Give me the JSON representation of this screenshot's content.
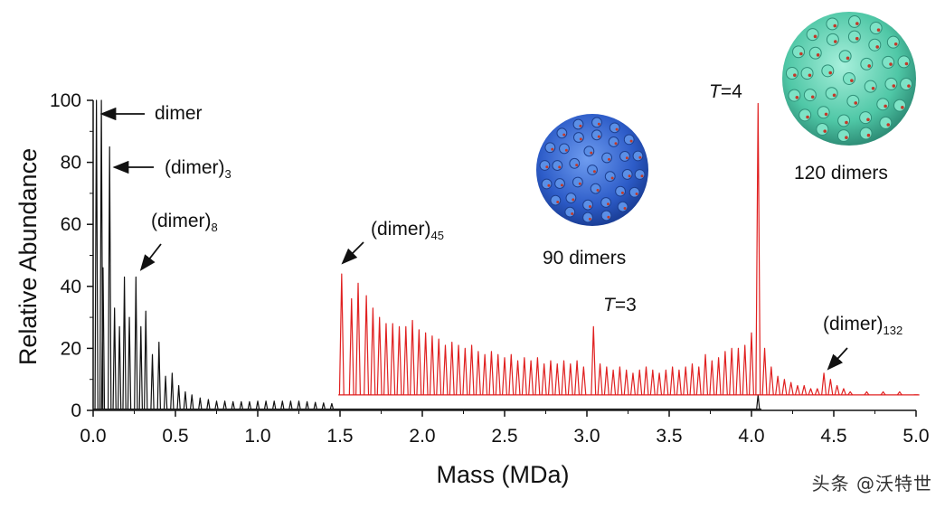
{
  "chart_data": {
    "type": "line",
    "xlabel": "Mass (MDa)",
    "ylabel": "Relative Abundance",
    "xlim": [
      0.0,
      5.0
    ],
    "ylim": [
      0,
      100
    ],
    "xticks": [
      "0.0",
      "0.5",
      "1.0",
      "1.5",
      "2.0",
      "2.5",
      "3.0",
      "3.5",
      "4.0",
      "4.5",
      "5.0"
    ],
    "yticks": [
      "0",
      "20",
      "40",
      "60",
      "80",
      "100"
    ],
    "grid": false,
    "series": [
      {
        "color": "#111111",
        "peaks": [
          {
            "x": 0.02,
            "y": 100
          },
          {
            "x": 0.05,
            "y": 100
          },
          {
            "x": 0.06,
            "y": 46
          },
          {
            "x": 0.1,
            "y": 85
          },
          {
            "x": 0.13,
            "y": 33
          },
          {
            "x": 0.16,
            "y": 27
          },
          {
            "x": 0.19,
            "y": 43
          },
          {
            "x": 0.22,
            "y": 30
          },
          {
            "x": 0.26,
            "y": 43
          },
          {
            "x": 0.29,
            "y": 27
          },
          {
            "x": 0.32,
            "y": 32
          },
          {
            "x": 0.36,
            "y": 18
          },
          {
            "x": 0.4,
            "y": 22
          },
          {
            "x": 0.44,
            "y": 11
          },
          {
            "x": 0.48,
            "y": 12
          },
          {
            "x": 0.52,
            "y": 8
          },
          {
            "x": 0.56,
            "y": 6
          },
          {
            "x": 0.6,
            "y": 5
          },
          {
            "x": 0.65,
            "y": 4
          },
          {
            "x": 0.7,
            "y": 3.5
          },
          {
            "x": 0.75,
            "y": 3
          },
          {
            "x": 0.8,
            "y": 3
          },
          {
            "x": 0.85,
            "y": 2.8
          },
          {
            "x": 0.9,
            "y": 2.8
          },
          {
            "x": 0.95,
            "y": 2.8
          },
          {
            "x": 1.0,
            "y": 3
          },
          {
            "x": 1.05,
            "y": 3
          },
          {
            "x": 1.1,
            "y": 3
          },
          {
            "x": 1.15,
            "y": 3
          },
          {
            "x": 1.2,
            "y": 3
          },
          {
            "x": 1.25,
            "y": 3
          },
          {
            "x": 1.3,
            "y": 2.8
          },
          {
            "x": 1.35,
            "y": 2.6
          },
          {
            "x": 1.4,
            "y": 2.4
          },
          {
            "x": 1.45,
            "y": 2.2
          },
          {
            "x": 4.04,
            "y": 5
          }
        ]
      },
      {
        "color": "#e02020",
        "peaks": [
          {
            "x": 1.51,
            "y": 44
          },
          {
            "x": 1.57,
            "y": 36
          },
          {
            "x": 1.61,
            "y": 41
          },
          {
            "x": 1.66,
            "y": 37
          },
          {
            "x": 1.7,
            "y": 33
          },
          {
            "x": 1.74,
            "y": 30
          },
          {
            "x": 1.78,
            "y": 28
          },
          {
            "x": 1.82,
            "y": 28
          },
          {
            "x": 1.86,
            "y": 27
          },
          {
            "x": 1.9,
            "y": 27
          },
          {
            "x": 1.94,
            "y": 29
          },
          {
            "x": 1.98,
            "y": 26
          },
          {
            "x": 2.02,
            "y": 25
          },
          {
            "x": 2.06,
            "y": 24
          },
          {
            "x": 2.1,
            "y": 23
          },
          {
            "x": 2.14,
            "y": 21
          },
          {
            "x": 2.18,
            "y": 22
          },
          {
            "x": 2.22,
            "y": 21
          },
          {
            "x": 2.26,
            "y": 20
          },
          {
            "x": 2.3,
            "y": 21
          },
          {
            "x": 2.34,
            "y": 19
          },
          {
            "x": 2.38,
            "y": 18
          },
          {
            "x": 2.42,
            "y": 19
          },
          {
            "x": 2.46,
            "y": 18
          },
          {
            "x": 2.5,
            "y": 17
          },
          {
            "x": 2.54,
            "y": 18
          },
          {
            "x": 2.58,
            "y": 16
          },
          {
            "x": 2.62,
            "y": 17
          },
          {
            "x": 2.66,
            "y": 16
          },
          {
            "x": 2.7,
            "y": 17
          },
          {
            "x": 2.74,
            "y": 15
          },
          {
            "x": 2.78,
            "y": 16
          },
          {
            "x": 2.82,
            "y": 15
          },
          {
            "x": 2.86,
            "y": 16
          },
          {
            "x": 2.9,
            "y": 15
          },
          {
            "x": 2.94,
            "y": 16
          },
          {
            "x": 2.98,
            "y": 14
          },
          {
            "x": 3.04,
            "y": 27
          },
          {
            "x": 3.08,
            "y": 15
          },
          {
            "x": 3.12,
            "y": 14
          },
          {
            "x": 3.16,
            "y": 13
          },
          {
            "x": 3.2,
            "y": 14
          },
          {
            "x": 3.24,
            "y": 13
          },
          {
            "x": 3.28,
            "y": 12
          },
          {
            "x": 3.32,
            "y": 13
          },
          {
            "x": 3.36,
            "y": 14
          },
          {
            "x": 3.4,
            "y": 13
          },
          {
            "x": 3.44,
            "y": 12
          },
          {
            "x": 3.48,
            "y": 13
          },
          {
            "x": 3.52,
            "y": 14
          },
          {
            "x": 3.56,
            "y": 13
          },
          {
            "x": 3.6,
            "y": 14
          },
          {
            "x": 3.64,
            "y": 15
          },
          {
            "x": 3.68,
            "y": 14
          },
          {
            "x": 3.72,
            "y": 18
          },
          {
            "x": 3.76,
            "y": 16
          },
          {
            "x": 3.8,
            "y": 17
          },
          {
            "x": 3.84,
            "y": 19
          },
          {
            "x": 3.88,
            "y": 20
          },
          {
            "x": 3.92,
            "y": 20
          },
          {
            "x": 3.96,
            "y": 21
          },
          {
            "x": 4.0,
            "y": 25
          },
          {
            "x": 4.04,
            "y": 99
          },
          {
            "x": 4.08,
            "y": 20
          },
          {
            "x": 4.12,
            "y": 14
          },
          {
            "x": 4.16,
            "y": 11
          },
          {
            "x": 4.2,
            "y": 10
          },
          {
            "x": 4.24,
            "y": 9
          },
          {
            "x": 4.28,
            "y": 8
          },
          {
            "x": 4.32,
            "y": 8
          },
          {
            "x": 4.36,
            "y": 7
          },
          {
            "x": 4.4,
            "y": 7
          },
          {
            "x": 4.44,
            "y": 12
          },
          {
            "x": 4.48,
            "y": 10
          },
          {
            "x": 4.52,
            "y": 8
          },
          {
            "x": 4.56,
            "y": 7
          },
          {
            "x": 4.6,
            "y": 6
          },
          {
            "x": 4.7,
            "y": 6
          },
          {
            "x": 4.8,
            "y": 6
          },
          {
            "x": 4.9,
            "y": 6
          },
          {
            "x": 5.0,
            "y": 5
          }
        ]
      }
    ],
    "annotations": [
      {
        "id": "dimer",
        "parts": [
          {
            "text": "dimer"
          }
        ],
        "x": 0.07,
        "y": 96
      },
      {
        "id": "dimer3",
        "parts": [
          {
            "text": "(dimer)"
          },
          {
            "text": "3",
            "sub": true
          }
        ],
        "x": 0.12,
        "y": 78
      },
      {
        "id": "dimer8",
        "parts": [
          {
            "text": "(dimer)"
          },
          {
            "text": "8",
            "sub": true
          }
        ],
        "x": 0.3,
        "y": 46
      },
      {
        "id": "dimer45",
        "parts": [
          {
            "text": "(dimer)"
          },
          {
            "text": "45",
            "sub": true
          }
        ],
        "x": 1.51,
        "y": 47
      },
      {
        "id": "dimer132",
        "parts": [
          {
            "text": "(dimer)"
          },
          {
            "text": "132",
            "sub": true
          }
        ],
        "x": 4.45,
        "y": 14
      },
      {
        "id": "T3",
        "parts": [
          {
            "text": "T",
            "italic": true
          },
          {
            "text": "=3"
          }
        ],
        "x": 3.04,
        "y": 30
      },
      {
        "id": "T4",
        "parts": [
          {
            "text": "T",
            "italic": true
          },
          {
            "text": "=4"
          }
        ],
        "x": 4.0,
        "y": 101
      }
    ],
    "insets": [
      {
        "id": "ninety",
        "label": "90 dimers",
        "color": "#3b6fd6"
      },
      {
        "id": "onetwenty",
        "label": "120 dimers",
        "color": "#5fd6b4"
      }
    ]
  },
  "watermark": "头条 @沃特世"
}
